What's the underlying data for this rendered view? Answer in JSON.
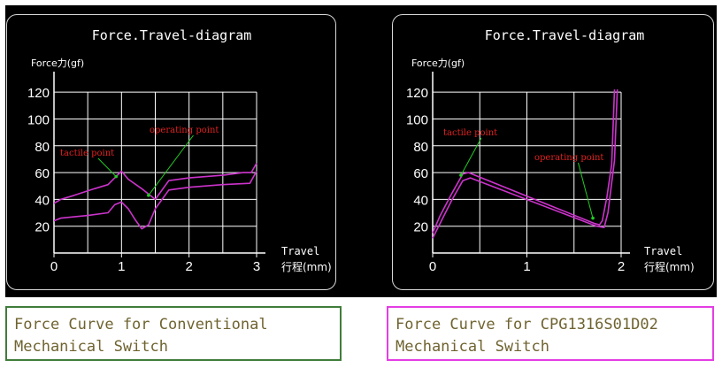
{
  "chart_data": [
    {
      "type": "line",
      "title": "Force.Travel-diagram",
      "ylabel": "Force力(gf)",
      "xlabel": [
        "Travel",
        "行程(mm)"
      ],
      "yticks": [
        20,
        40,
        60,
        80,
        100,
        120
      ],
      "xticks": [
        0,
        1,
        2,
        3
      ],
      "ylim": [
        0,
        128
      ],
      "xlim": [
        0,
        3
      ],
      "grid": true,
      "series_color": "#cc33cc",
      "series": [
        {
          "x": [
            0,
            0.1,
            0.3,
            0.6,
            0.8,
            0.9,
            1.0,
            1.1,
            1.3,
            1.5,
            1.7,
            2.0,
            2.5,
            2.8,
            2.92,
            3.0
          ],
          "y": [
            37,
            40,
            43,
            48,
            51,
            56,
            61,
            55,
            48,
            40,
            54,
            56,
            58,
            60,
            60,
            67
          ]
        },
        {
          "x": [
            0,
            0.1,
            0.3,
            0.5,
            0.8,
            0.9,
            1.0,
            1.1,
            1.2,
            1.3,
            1.4,
            1.5,
            1.7,
            2.0,
            2.5,
            2.9,
            3.0
          ],
          "y": [
            24,
            26,
            27,
            28,
            30,
            36,
            38,
            33,
            25,
            18,
            21,
            33,
            47,
            49,
            51,
            52,
            61
          ]
        }
      ],
      "annotations": [
        {
          "text": "tactile point",
          "target": [
            0.92,
            57
          ]
        },
        {
          "text": "operating point",
          "target": [
            1.4,
            43
          ]
        }
      ],
      "caption": "Force Curve for Conventional\nMechanical Switch"
    },
    {
      "type": "line",
      "title": "Force.Travel-diagram",
      "ylabel": "Force力(gf)",
      "xlabel": [
        "Travel",
        "行程(mm)"
      ],
      "yticks": [
        20,
        40,
        60,
        80,
        100,
        120
      ],
      "xticks": [
        0,
        1,
        2
      ],
      "ylim": [
        0,
        128
      ],
      "xlim": [
        0,
        2
      ],
      "grid": true,
      "series_color": "#cc33cc",
      "series": [
        {
          "x": [
            0,
            0.08,
            0.2,
            0.32,
            0.38,
            1.72,
            1.77,
            1.8,
            1.85,
            1.9,
            1.93
          ],
          "y": [
            15,
            28,
            44,
            59,
            60,
            22,
            21,
            24,
            42,
            66,
            122
          ]
        },
        {
          "x": [
            0,
            0.1,
            0.2,
            0.32,
            0.4,
            1.74,
            1.82,
            1.86,
            1.93,
            1.96
          ],
          "y": [
            11,
            25,
            39,
            54,
            56,
            20,
            19,
            30,
            69,
            122
          ]
        }
      ],
      "annotations": [
        {
          "text": "tactile point",
          "target": [
            0.3,
            58
          ]
        },
        {
          "text": "operating point",
          "target": [
            1.7,
            26
          ]
        }
      ],
      "caption": "Force Curve for CPG1316S01D02\nMechanical Switch"
    }
  ]
}
